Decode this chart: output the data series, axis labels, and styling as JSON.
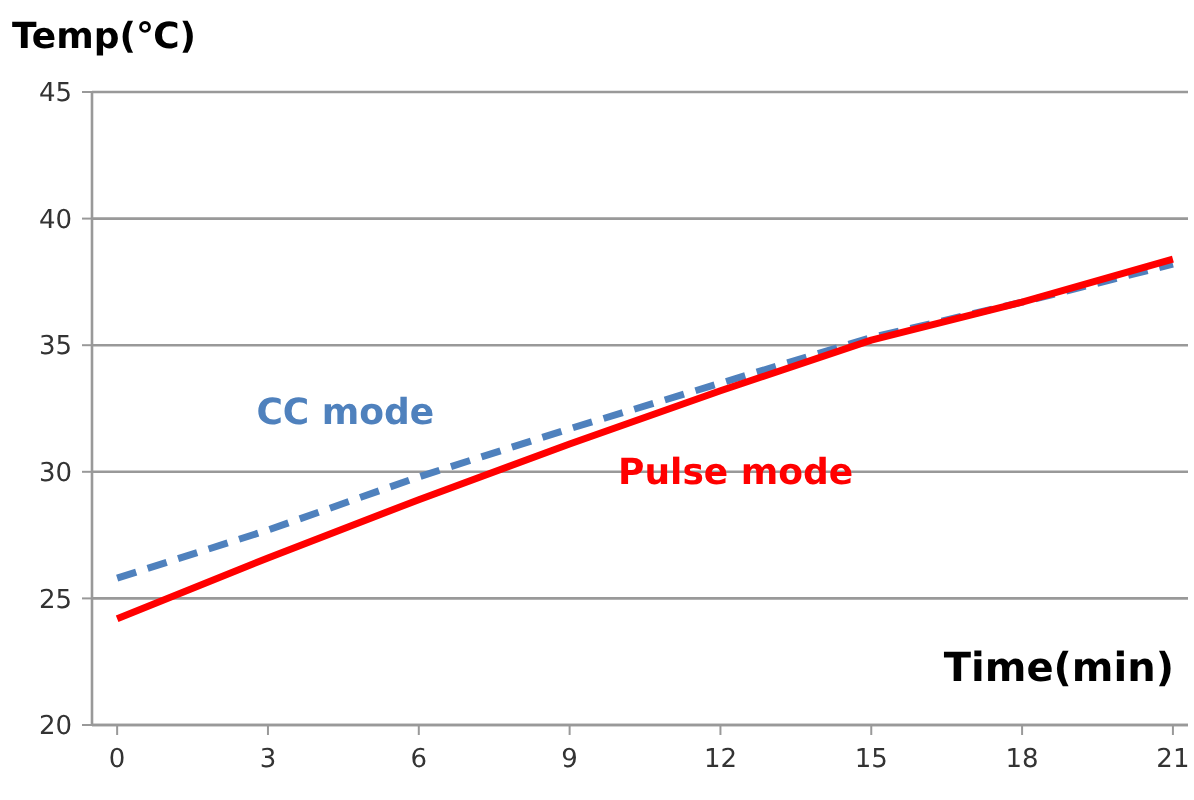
{
  "chart_data": {
    "type": "line",
    "xlabel": "Time(min)",
    "ylabel": "Temp(℃)",
    "x": [
      0,
      3,
      6,
      9,
      12,
      15,
      18,
      21
    ],
    "series": [
      {
        "name": "CC mode",
        "color": "#4f81bd",
        "line_style": "dashed",
        "values": [
          25.8,
          27.7,
          29.8,
          31.7,
          33.5,
          35.3,
          36.7,
          38.2
        ]
      },
      {
        "name": "Pulse mode",
        "color": "#ff0000",
        "line_style": "solid",
        "values": [
          24.2,
          26.6,
          28.9,
          31.1,
          33.2,
          35.2,
          36.7,
          38.4
        ]
      }
    ],
    "xlim": [
      -0.5,
      21.3
    ],
    "xticks": [
      0,
      3,
      6,
      9,
      12,
      15,
      18,
      21
    ],
    "ylim": [
      20,
      45
    ],
    "yticks": [
      20,
      25,
      30,
      35,
      40,
      45
    ],
    "grid": "y",
    "marker": "none"
  }
}
